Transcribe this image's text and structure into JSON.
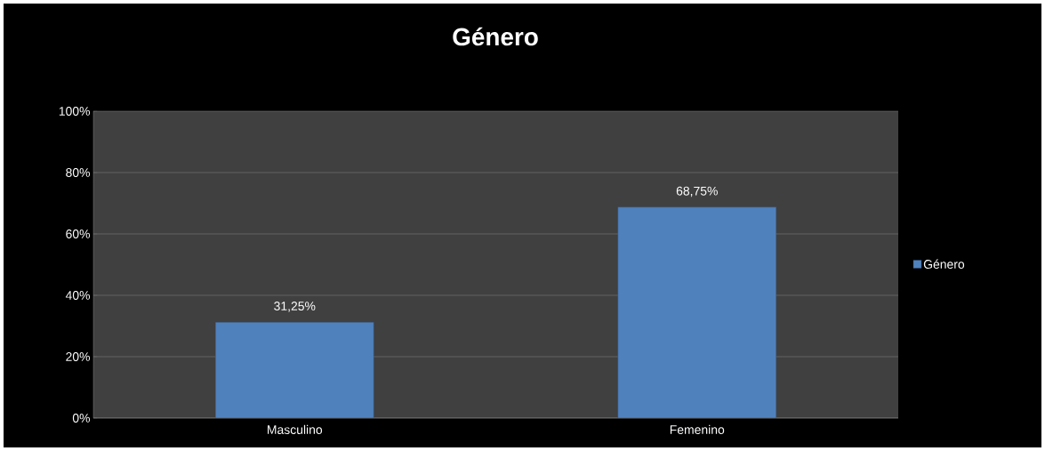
{
  "chart_data": {
    "type": "bar",
    "title": "Género",
    "categories": [
      "Masculino",
      "Femenino"
    ],
    "series": [
      {
        "name": "Género",
        "color": "#4f81bd",
        "values": [
          31.25,
          68.75
        ],
        "value_labels": [
          "31,25%",
          "68,75%"
        ]
      }
    ],
    "ylim": [
      0,
      100
    ],
    "yticks": [
      {
        "value": 0,
        "label": "0%"
      },
      {
        "value": 20,
        "label": "20%"
      },
      {
        "value": 40,
        "label": "40%"
      },
      {
        "value": 60,
        "label": "60%"
      },
      {
        "value": 80,
        "label": "80%"
      },
      {
        "value": 100,
        "label": "100%"
      }
    ],
    "grid": "y",
    "legend": "right"
  }
}
